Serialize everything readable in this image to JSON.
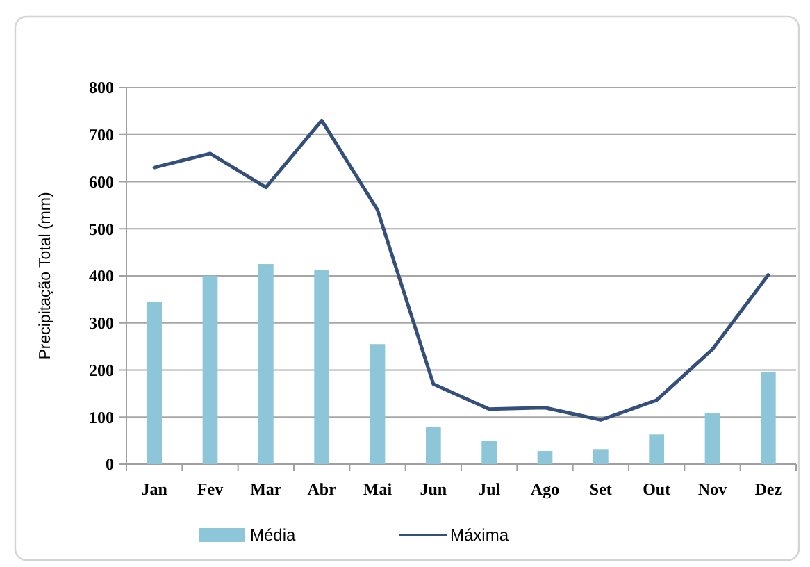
{
  "chart_data": {
    "type": "bar",
    "ylabel": "Precipitação Total (mm)",
    "categories": [
      "Jan",
      "Fev",
      "Mar",
      "Abr",
      "Mai",
      "Jun",
      "Jul",
      "Ago",
      "Set",
      "Out",
      "Nov",
      "Dez"
    ],
    "series": [
      {
        "name": "Média",
        "color": "#8cc6d8",
        "values": [
          345,
          400,
          425,
          413,
          255,
          79,
          50,
          28,
          32,
          63,
          108,
          195
        ]
      },
      {
        "name": "Máxima",
        "type": "line",
        "color": "#34507a",
        "values": [
          630,
          660,
          588,
          730,
          540,
          170,
          117,
          120,
          94,
          136,
          244,
          402
        ]
      }
    ],
    "ylim": [
      0,
      800
    ],
    "yticks": [
      0,
      100,
      200,
      300,
      400,
      500,
      600,
      700,
      800
    ],
    "grid": "y",
    "legend": "bottom"
  }
}
